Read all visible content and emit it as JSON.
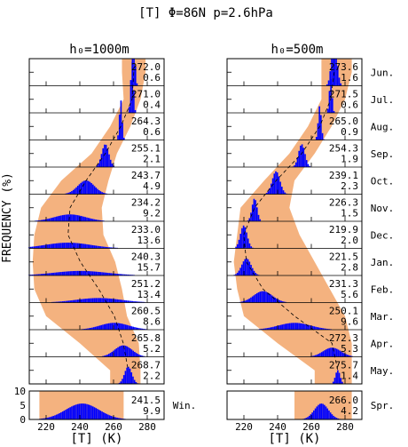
{
  "title": "[T] Φ=86N p=2.6hPa",
  "panel_titles": [
    "h₀=1000m",
    "h₀=500m"
  ],
  "ylabel": "FREQUENCY (%)",
  "xlabel": "[T] (K)",
  "colors": {
    "bars": "#0000ff",
    "band": "#f4b27f",
    "frame": "#000000",
    "dashed": "#000000"
  },
  "chart_data": {
    "type": "bar",
    "xlim": [
      210,
      290
    ],
    "xticks": [
      220,
      240,
      260,
      280
    ],
    "months": [
      "Jun.",
      "Jul.",
      "Aug.",
      "Sep.",
      "Oct.",
      "Nov.",
      "Dec.",
      "Jan.",
      "Feb.",
      "Mar.",
      "Apr.",
      "May."
    ],
    "panels": [
      {
        "name": "h₀=1000m",
        "rows": [
          {
            "month": "Jun.",
            "mean": "272.0",
            "sd": "0.6",
            "band": [
              265,
              279
            ],
            "peak": 40
          },
          {
            "month": "Jul.",
            "mean": "271.0",
            "sd": "0.4",
            "band": [
              266,
              276
            ],
            "peak": 45
          },
          {
            "month": "Aug.",
            "mean": "264.3",
            "sd": "0.6",
            "band": [
              258,
              270
            ],
            "peak": 35
          },
          {
            "month": "Sep.",
            "mean": "255.1",
            "sd": "2.1",
            "band": [
              247,
              262
            ],
            "peak": 20
          },
          {
            "month": "Oct.",
            "mean": "243.7",
            "sd": "4.9",
            "band": [
              229,
              257
            ],
            "peak": 12
          },
          {
            "month": "Nov.",
            "mean": "234.2",
            "sd": "9.2",
            "band": [
              217,
              253
            ],
            "peak": 6
          },
          {
            "month": "Dec.",
            "mean": "233.0",
            "sd": "13.6",
            "band": [
              213,
              254
            ],
            "peak": 5
          },
          {
            "month": "Jan.",
            "mean": "240.3",
            "sd": "15.7",
            "band": [
              212,
              261
            ],
            "peak": 4
          },
          {
            "month": "Feb.",
            "mean": "251.2",
            "sd": "13.4",
            "band": [
              213,
              265
            ],
            "peak": 4
          },
          {
            "month": "Mar.",
            "mean": "260.5",
            "sd": "8.6",
            "band": [
              220,
              268
            ],
            "peak": 6
          },
          {
            "month": "Apr.",
            "mean": "265.8",
            "sd": "5.2",
            "band": [
              240,
              275
            ],
            "peak": 10
          },
          {
            "month": "May.",
            "mean": "268.7",
            "sd": "2.2",
            "band": [
              258,
              276
            ],
            "peak": 15
          }
        ],
        "annual": {
          "label": "Win.",
          "mean": "241.5",
          "sd": "9.9",
          "band": [
            216,
            266
          ],
          "peak": 4
        }
      },
      {
        "name": "h₀=500m",
        "rows": [
          {
            "month": "Jun.",
            "mean": "273.6",
            "sd": "1.6",
            "band": [
              266,
              284
            ],
            "peak": 40
          },
          {
            "month": "Jul.",
            "mean": "271.5",
            "sd": "0.6",
            "band": [
              266,
              280
            ],
            "peak": 30
          },
          {
            "month": "Aug.",
            "mean": "265.0",
            "sd": "0.9",
            "band": [
              258,
              272
            ],
            "peak": 30
          },
          {
            "month": "Sep.",
            "mean": "254.3",
            "sd": "1.9",
            "band": [
              247,
              262
            ],
            "peak": 20
          },
          {
            "month": "Oct.",
            "mean": "239.1",
            "sd": "2.3",
            "band": [
              232,
              250
            ],
            "peak": 20
          },
          {
            "month": "Nov.",
            "mean": "226.3",
            "sd": "1.5",
            "band": [
              218,
              247
            ],
            "peak": 20
          },
          {
            "month": "Dec.",
            "mean": "219.9",
            "sd": "2.0",
            "band": [
              216,
              253
            ],
            "peak": 20
          },
          {
            "month": "Jan.",
            "mean": "221.5",
            "sd": "2.8",
            "band": [
              214,
              262
            ],
            "peak": 15
          },
          {
            "month": "Feb.",
            "mean": "231.3",
            "sd": "5.6",
            "band": [
              216,
              271
            ],
            "peak": 10
          },
          {
            "month": "Mar.",
            "mean": "250.1",
            "sd": "9.6",
            "band": [
              220,
              280
            ],
            "peak": 6
          },
          {
            "month": "Apr.",
            "mean": "272.3",
            "sd": "5.3",
            "band": [
              240,
              284
            ],
            "peak": 8
          },
          {
            "month": "May.",
            "mean": "275.7",
            "sd": "1.4",
            "band": [
              262,
              284
            ],
            "peak": 12
          }
        ],
        "annual": {
          "label": "Spr.",
          "mean": "266.0",
          "sd": "4.2",
          "band": [
            250,
            284
          ],
          "peak": 4
        }
      }
    ],
    "annual_yticks": [
      0,
      5,
      10
    ]
  }
}
